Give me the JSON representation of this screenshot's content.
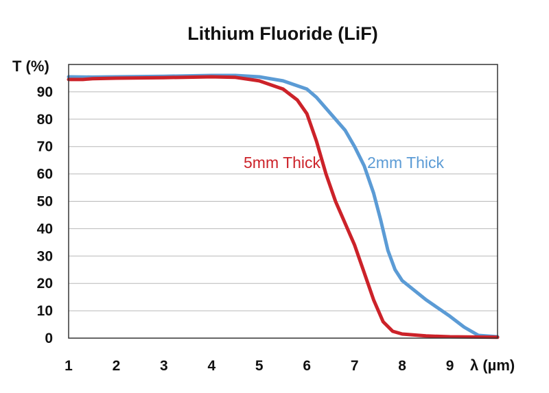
{
  "chart_data": {
    "type": "line",
    "title": "Lithium Fluoride (LiF)",
    "xlabel": "λ (µm)",
    "ylabel": "T (%)",
    "xlim": [
      1,
      10
    ],
    "ylim": [
      0,
      100
    ],
    "x_ticks": [
      "1",
      "2",
      "3",
      "4",
      "5",
      "6",
      "7",
      "8",
      "9"
    ],
    "y_ticks": [
      "0",
      "10",
      "20",
      "30",
      "40",
      "50",
      "60",
      "70",
      "80",
      "90"
    ],
    "grid": "horizontal",
    "legend": "none",
    "series": [
      {
        "name": "2mm Thick",
        "color": "#5b9bd5",
        "points": [
          [
            1.0,
            95.5
          ],
          [
            1.5,
            95.4
          ],
          [
            2.0,
            95.5
          ],
          [
            3.0,
            95.7
          ],
          [
            4.0,
            96.0
          ],
          [
            4.5,
            96.0
          ],
          [
            5.0,
            95.5
          ],
          [
            5.5,
            94.0
          ],
          [
            6.0,
            91.0
          ],
          [
            6.2,
            88.0
          ],
          [
            6.5,
            82.0
          ],
          [
            6.8,
            76.0
          ],
          [
            7.0,
            70.0
          ],
          [
            7.2,
            63.0
          ],
          [
            7.4,
            53.0
          ],
          [
            7.55,
            43.0
          ],
          [
            7.7,
            32.0
          ],
          [
            7.85,
            25.0
          ],
          [
            8.0,
            21.0
          ],
          [
            8.5,
            14.0
          ],
          [
            9.0,
            8.0
          ],
          [
            9.3,
            4.0
          ],
          [
            9.6,
            1.0
          ],
          [
            10.0,
            0.5
          ]
        ]
      },
      {
        "name": "5mm Thick",
        "color": "#cc2229",
        "points": [
          [
            1.0,
            94.5
          ],
          [
            1.3,
            94.5
          ],
          [
            1.5,
            94.8
          ],
          [
            2.0,
            95.0
          ],
          [
            3.0,
            95.2
          ],
          [
            4.0,
            95.5
          ],
          [
            4.5,
            95.3
          ],
          [
            5.0,
            94.0
          ],
          [
            5.5,
            91.0
          ],
          [
            5.8,
            87.0
          ],
          [
            6.0,
            82.0
          ],
          [
            6.2,
            72.0
          ],
          [
            6.4,
            60.0
          ],
          [
            6.6,
            50.0
          ],
          [
            6.8,
            42.0
          ],
          [
            7.0,
            34.0
          ],
          [
            7.2,
            24.0
          ],
          [
            7.4,
            14.0
          ],
          [
            7.6,
            6.0
          ],
          [
            7.8,
            2.5
          ],
          [
            8.0,
            1.5
          ],
          [
            8.5,
            0.8
          ],
          [
            9.0,
            0.5
          ],
          [
            10.0,
            0.3
          ]
        ]
      }
    ]
  },
  "annotations": {
    "thick_5mm": "5mm Thick",
    "thick_2mm": "2mm Thick"
  }
}
